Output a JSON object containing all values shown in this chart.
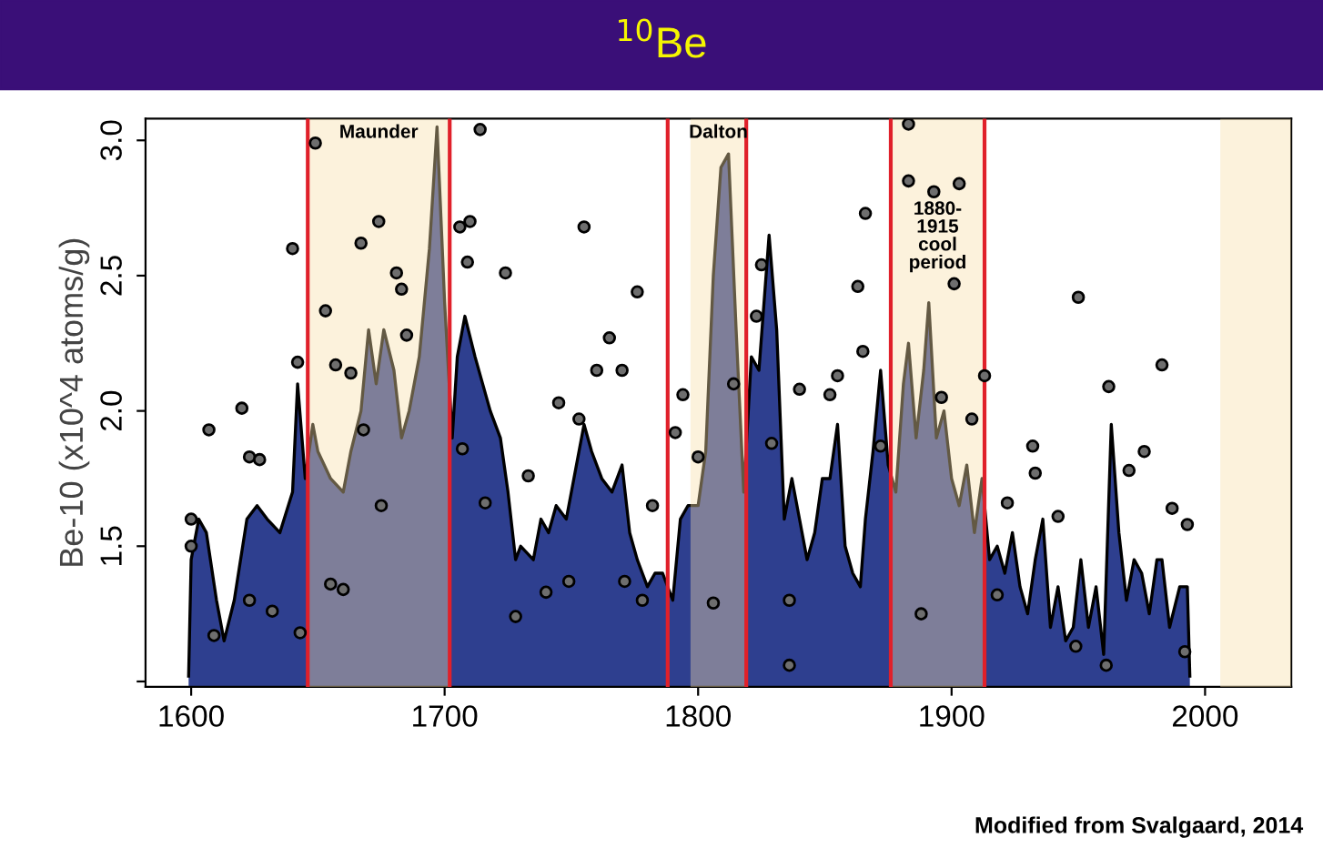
{
  "chart_data": {
    "type": "area",
    "title": "$^{10}$Be",
    "ylabel": "Be-10 (x10^4 atoms/g)",
    "annotations": [
      "Modified from Svalgaard, 2014"
    ],
    "xlim": [
      1582,
      2034
    ],
    "ylim": [
      0.98,
      3.08
    ],
    "xticks": [
      1600,
      1700,
      1800,
      1900,
      2000
    ],
    "yticks": [
      {
        "value": 1.0,
        "label": null
      },
      {
        "value": 1.5,
        "label": "1.5"
      },
      {
        "value": 2.0,
        "label": "2.0"
      },
      {
        "value": 2.5,
        "label": "2.5"
      },
      {
        "value": 3.0,
        "label": "3.0"
      }
    ],
    "grid": false,
    "legend": false,
    "bands": [
      {
        "axis": "x",
        "from": 1646,
        "to": 1702,
        "label": "Maunder",
        "color": "#f7dfa8"
      },
      {
        "axis": "x",
        "from": 1797,
        "to": 1819,
        "label": "Dalton",
        "color": "#f7dfa8"
      },
      {
        "axis": "x",
        "from": 1876,
        "to": 1913,
        "label": "1880-\n1915\ncool\nperiod",
        "color": "#f7dfa8"
      },
      {
        "axis": "x",
        "from": 2006,
        "to": 2034,
        "label": null,
        "color": "#f7dfa8"
      }
    ],
    "ref_lines": [
      {
        "axis": "x",
        "value": 1646,
        "label": null,
        "color": "#e0202a"
      },
      {
        "axis": "x",
        "value": 1702,
        "label": null,
        "color": "#e0202a"
      },
      {
        "axis": "x",
        "value": 1788,
        "label": null,
        "color": "#e0202a"
      },
      {
        "axis": "x",
        "value": 1819,
        "label": null,
        "color": "#e0202a"
      },
      {
        "axis": "x",
        "value": 1876,
        "label": null,
        "color": "#e0202a"
      },
      {
        "axis": "x",
        "value": 1913,
        "label": null,
        "color": "#e0202a"
      }
    ],
    "series": [
      {
        "color": "#2e3f8f",
        "x": [
          1599,
          1600,
          1603,
          1606,
          1610,
          1613,
          1617,
          1622,
          1626,
          1630,
          1635,
          1640,
          1642,
          1645,
          1648,
          1650,
          1655,
          1660,
          1663,
          1667,
          1670,
          1673,
          1676,
          1680,
          1683,
          1686,
          1690,
          1694,
          1697,
          1700,
          1703,
          1705,
          1708,
          1712,
          1715,
          1718,
          1722,
          1725,
          1728,
          1730,
          1735,
          1738,
          1741,
          1744,
          1748,
          1752,
          1755,
          1758,
          1762,
          1766,
          1770,
          1773,
          1776,
          1780,
          1783,
          1786,
          1790,
          1793,
          1796,
          1800,
          1803,
          1806,
          1809,
          1812,
          1815,
          1818,
          1821,
          1824,
          1828,
          1831,
          1834,
          1837,
          1840,
          1843,
          1846,
          1849,
          1852,
          1855,
          1858,
          1861,
          1864,
          1866,
          1869,
          1872,
          1875,
          1878,
          1881,
          1883,
          1886,
          1889,
          1891,
          1894,
          1897,
          1900,
          1903,
          1906,
          1909,
          1912,
          1915,
          1918,
          1921,
          1924,
          1927,
          1930,
          1933,
          1936,
          1939,
          1942,
          1945,
          1948,
          1951,
          1954,
          1957,
          1960,
          1963,
          1966,
          1969,
          1972,
          1975,
          1978,
          1981,
          1983,
          1986,
          1990,
          1993,
          1994
        ],
        "values": [
          1.02,
          1.45,
          1.6,
          1.55,
          1.3,
          1.15,
          1.3,
          1.6,
          1.65,
          1.6,
          1.55,
          1.7,
          2.1,
          1.75,
          1.95,
          1.85,
          1.75,
          1.7,
          1.85,
          2.0,
          2.3,
          2.1,
          2.3,
          2.15,
          1.9,
          2.0,
          2.2,
          2.6,
          3.05,
          2.4,
          1.9,
          2.2,
          2.35,
          2.2,
          2.1,
          2.0,
          1.9,
          1.7,
          1.45,
          1.5,
          1.45,
          1.6,
          1.55,
          1.65,
          1.6,
          1.8,
          1.95,
          1.85,
          1.75,
          1.7,
          1.8,
          1.55,
          1.45,
          1.35,
          1.4,
          1.4,
          1.3,
          1.6,
          1.65,
          1.65,
          1.85,
          2.5,
          2.9,
          2.95,
          2.3,
          1.7,
          2.2,
          2.15,
          2.65,
          2.3,
          1.6,
          1.75,
          1.6,
          1.45,
          1.55,
          1.75,
          1.75,
          1.95,
          1.5,
          1.4,
          1.35,
          1.6,
          1.85,
          2.15,
          1.8,
          1.7,
          2.1,
          2.25,
          1.9,
          2.15,
          2.4,
          1.9,
          2.0,
          1.75,
          1.65,
          1.8,
          1.55,
          1.75,
          1.45,
          1.5,
          1.4,
          1.55,
          1.35,
          1.25,
          1.45,
          1.6,
          1.2,
          1.35,
          1.15,
          1.2,
          1.45,
          1.2,
          1.35,
          1.1,
          1.95,
          1.55,
          1.3,
          1.45,
          1.4,
          1.25,
          1.45,
          1.45,
          1.2,
          1.35,
          1.35,
          1.02
        ]
      },
      {
        "type": "scatter",
        "marker": "circle",
        "color": "#6e6e6e",
        "x": [
          1600,
          1600,
          1607,
          1620,
          1623,
          1627,
          1640,
          1642,
          1649,
          1653,
          1657,
          1667,
          1674,
          1681,
          1683,
          1685,
          1663,
          1668,
          1675,
          1655,
          1660,
          1706,
          1710,
          1714,
          1724,
          1709,
          1707,
          1716,
          1728,
          1755,
          1765,
          1776,
          1770,
          1760,
          1745,
          1753,
          1733,
          1740,
          1749,
          1771,
          1782,
          1778,
          1632,
          1623,
          1609,
          1643,
          1794,
          1791,
          1800,
          1806,
          1814,
          1823,
          1825,
          1829,
          1840,
          1852,
          1863,
          1866,
          1865,
          1855,
          1872,
          1836,
          1836,
          1883,
          1883,
          1893,
          1903,
          1901,
          1896,
          1908,
          1913,
          1888,
          1932,
          1933,
          1942,
          1950,
          1962,
          1976,
          1983,
          1987,
          1993,
          1961,
          1992,
          1922,
          1918,
          1949,
          1970
        ],
        "values": [
          1.6,
          1.5,
          1.93,
          2.01,
          1.83,
          1.82,
          2.6,
          2.18,
          2.99,
          2.37,
          2.17,
          2.62,
          2.7,
          2.51,
          2.45,
          2.28,
          2.14,
          1.93,
          1.65,
          1.36,
          1.34,
          2.68,
          2.7,
          3.04,
          2.51,
          2.55,
          1.86,
          1.66,
          1.24,
          2.68,
          2.27,
          2.44,
          2.15,
          2.15,
          2.03,
          1.97,
          1.76,
          1.33,
          1.37,
          1.37,
          1.65,
          1.3,
          1.26,
          1.3,
          1.17,
          1.18,
          2.06,
          1.92,
          1.83,
          1.29,
          2.1,
          2.35,
          2.54,
          1.88,
          2.08,
          2.06,
          2.46,
          2.73,
          2.22,
          2.13,
          1.87,
          1.3,
          1.06,
          3.06,
          2.85,
          2.81,
          2.84,
          2.47,
          2.05,
          1.97,
          2.13,
          1.25,
          1.87,
          1.77,
          1.61,
          2.42,
          2.09,
          1.85,
          2.17,
          1.64,
          1.58,
          1.06,
          1.11,
          1.66,
          1.32,
          1.13,
          1.78
        ]
      }
    ]
  }
}
